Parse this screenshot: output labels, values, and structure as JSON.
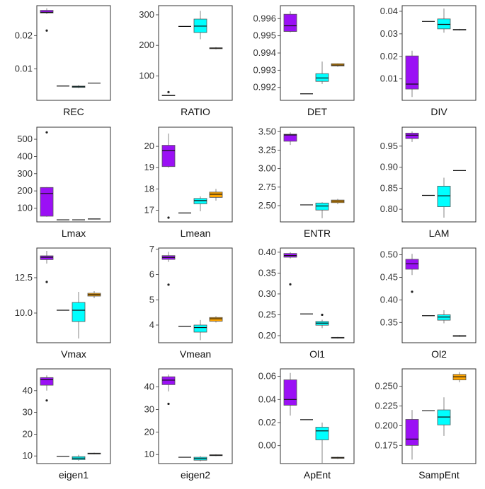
{
  "colors": {
    "group1": "#9B10F5",
    "group2": "#111111",
    "group3": "#00FFFF",
    "group4": "#FFA500"
  },
  "chart_data": [
    {
      "type": "box",
      "xlabel": "REC",
      "ylim": [
        0.0005,
        0.029
      ],
      "yticks": [
        0.01,
        0.02
      ],
      "ytick_labels": [
        "0.01",
        "0.02"
      ],
      "boxes": [
        {
          "min": 0.0265,
          "q1": 0.0268,
          "median": 0.027,
          "q3": 0.0276,
          "max": 0.0282,
          "outliers": [
            0.0215
          ]
        },
        {
          "min": 0.0048,
          "q1": 0.0048,
          "median": 0.0048,
          "q3": 0.0048,
          "max": 0.0048,
          "outliers": []
        },
        {
          "min": 0.0042,
          "q1": 0.0044,
          "median": 0.0046,
          "q3": 0.0048,
          "max": 0.0051,
          "outliers": []
        },
        {
          "min": 0.0056,
          "q1": 0.0057,
          "median": 0.0057,
          "q3": 0.0058,
          "max": 0.0058,
          "outliers": []
        }
      ]
    },
    {
      "type": "box",
      "xlabel": "RATIO",
      "ylim": [
        20,
        330
      ],
      "yticks": [
        100,
        200,
        300
      ],
      "ytick_labels": [
        "100",
        "200",
        "300"
      ],
      "boxes": [
        {
          "min": 35,
          "q1": 35,
          "median": 36,
          "q3": 37,
          "max": 37,
          "outliers": [
            47
          ]
        },
        {
          "min": 262,
          "q1": 262,
          "median": 262,
          "q3": 262,
          "max": 262,
          "outliers": []
        },
        {
          "min": 220,
          "q1": 242,
          "median": 263,
          "q3": 286,
          "max": 313,
          "outliers": []
        },
        {
          "min": 187,
          "q1": 189,
          "median": 191,
          "q3": 192,
          "max": 194,
          "outliers": []
        }
      ]
    },
    {
      "type": "box",
      "xlabel": "DET",
      "ylim": [
        0.99125,
        0.99675
      ],
      "yticks": [
        0.992,
        0.993,
        0.994,
        0.995,
        0.996
      ],
      "ytick_labels": [
        "0.992",
        "0.993",
        "0.994",
        "0.995",
        "0.996"
      ],
      "boxes": [
        {
          "min": 0.9952,
          "q1": 0.99525,
          "median": 0.99558,
          "q3": 0.99625,
          "max": 0.99642,
          "outliers": []
        },
        {
          "min": 0.99163,
          "q1": 0.99163,
          "median": 0.99163,
          "q3": 0.99163,
          "max": 0.99163,
          "outliers": []
        },
        {
          "min": 0.9922,
          "q1": 0.99235,
          "median": 0.99255,
          "q3": 0.9928,
          "max": 0.9935,
          "outliers": []
        },
        {
          "min": 0.9932,
          "q1": 0.99325,
          "median": 0.9933,
          "q3": 0.99338,
          "max": 0.9934,
          "outliers": []
        }
      ]
    },
    {
      "type": "box",
      "xlabel": "DIV",
      "ylim": [
        0.0005,
        0.0425
      ],
      "yticks": [
        0.01,
        0.02,
        0.03,
        0.04
      ],
      "ytick_labels": [
        "0.01",
        "0.02",
        "0.03",
        "0.04"
      ],
      "boxes": [
        {
          "min": 0.002,
          "q1": 0.0055,
          "median": 0.0077,
          "q3": 0.0202,
          "max": 0.0225,
          "outliers": []
        },
        {
          "min": 0.0355,
          "q1": 0.0355,
          "median": 0.0355,
          "q3": 0.0355,
          "max": 0.0355,
          "outliers": []
        },
        {
          "min": 0.0305,
          "q1": 0.0322,
          "median": 0.0342,
          "q3": 0.0366,
          "max": 0.0412,
          "outliers": []
        },
        {
          "min": 0.0315,
          "q1": 0.0317,
          "median": 0.0318,
          "q3": 0.032,
          "max": 0.0322,
          "outliers": []
        }
      ]
    },
    {
      "type": "box",
      "xlabel": "Lmax",
      "ylim": [
        20,
        570
      ],
      "yticks": [
        100,
        200,
        300,
        400,
        500
      ],
      "ytick_labels": [
        "100",
        "200",
        "300",
        "400",
        "500"
      ],
      "boxes": [
        {
          "min": 50,
          "q1": 53,
          "median": 185,
          "q3": 220,
          "max": 222,
          "outliers": [
            540
          ]
        },
        {
          "min": 32,
          "q1": 32,
          "median": 32,
          "q3": 32,
          "max": 32,
          "outliers": []
        },
        {
          "min": 31,
          "q1": 32,
          "median": 32,
          "q3": 33,
          "max": 33,
          "outliers": []
        },
        {
          "min": 36,
          "q1": 37,
          "median": 37,
          "q3": 38,
          "max": 38,
          "outliers": []
        }
      ]
    },
    {
      "type": "box",
      "xlabel": "Lmean",
      "ylim": [
        16.45,
        20.9
      ],
      "yticks": [
        17,
        18,
        19,
        20
      ],
      "ytick_labels": [
        "17",
        "18",
        "19",
        "20"
      ],
      "boxes": [
        {
          "min": 19.0,
          "q1": 19.05,
          "median": 19.8,
          "q3": 20.05,
          "max": 20.6,
          "outliers": [
            16.65
          ]
        },
        {
          "min": 16.87,
          "q1": 16.87,
          "median": 16.87,
          "q3": 16.87,
          "max": 16.87,
          "outliers": []
        },
        {
          "min": 16.95,
          "q1": 17.3,
          "median": 17.45,
          "q3": 17.55,
          "max": 17.65,
          "outliers": []
        },
        {
          "min": 17.45,
          "q1": 17.6,
          "median": 17.75,
          "q3": 17.85,
          "max": 18.0,
          "outliers": []
        }
      ]
    },
    {
      "type": "box",
      "xlabel": "ENTR",
      "ylim": [
        2.28,
        3.56
      ],
      "yticks": [
        2.5,
        2.75,
        3.0,
        3.25,
        3.5
      ],
      "ytick_labels": [
        "2.50",
        "2.75",
        "3.00",
        "3.25",
        "3.50"
      ],
      "boxes": [
        {
          "min": 3.32,
          "q1": 3.37,
          "median": 3.455,
          "q3": 3.465,
          "max": 3.49,
          "outliers": []
        },
        {
          "min": 2.51,
          "q1": 2.51,
          "median": 2.51,
          "q3": 2.51,
          "max": 2.51,
          "outliers": []
        },
        {
          "min": 2.33,
          "q1": 2.44,
          "median": 2.495,
          "q3": 2.535,
          "max": 2.545,
          "outliers": []
        },
        {
          "min": 2.52,
          "q1": 2.54,
          "median": 2.56,
          "q3": 2.575,
          "max": 2.59,
          "outliers": []
        }
      ]
    },
    {
      "type": "box",
      "xlabel": "LAM",
      "ylim": [
        0.77,
        0.995
      ],
      "yticks": [
        0.8,
        0.85,
        0.9,
        0.95
      ],
      "ytick_labels": [
        "0.80",
        "0.85",
        "0.90",
        "0.95"
      ],
      "boxes": [
        {
          "min": 0.96,
          "q1": 0.968,
          "median": 0.976,
          "q3": 0.981,
          "max": 0.985,
          "outliers": []
        },
        {
          "min": 0.833,
          "q1": 0.833,
          "median": 0.833,
          "q3": 0.833,
          "max": 0.833,
          "outliers": []
        },
        {
          "min": 0.78,
          "q1": 0.806,
          "median": 0.832,
          "q3": 0.855,
          "max": 0.875,
          "outliers": []
        },
        {
          "min": 0.892,
          "q1": 0.892,
          "median": 0.892,
          "q3": 0.892,
          "max": 0.892,
          "outliers": []
        }
      ]
    },
    {
      "type": "box",
      "xlabel": "Vmax",
      "ylim": [
        7.9,
        14.6
      ],
      "yticks": [
        10.0,
        12.5
      ],
      "ytick_labels": [
        "10.0",
        "12.5"
      ],
      "boxes": [
        {
          "min": 13.5,
          "q1": 13.78,
          "median": 13.95,
          "q3": 14.05,
          "max": 14.4,
          "outliers": [
            12.2
          ]
        },
        {
          "min": 10.2,
          "q1": 10.2,
          "median": 10.2,
          "q3": 10.2,
          "max": 10.2,
          "outliers": []
        },
        {
          "min": 8.2,
          "q1": 9.4,
          "median": 10.2,
          "q3": 10.75,
          "max": 11.5,
          "outliers": []
        },
        {
          "min": 11.05,
          "q1": 11.2,
          "median": 11.3,
          "q3": 11.4,
          "max": 11.55,
          "outliers": []
        }
      ]
    },
    {
      "type": "box",
      "xlabel": "Vmean",
      "ylim": [
        3.3,
        7.05
      ],
      "yticks": [
        4,
        5,
        6,
        7
      ],
      "ytick_labels": [
        "4",
        "5",
        "6",
        "7"
      ],
      "boxes": [
        {
          "min": 6.5,
          "q1": 6.6,
          "median": 6.68,
          "q3": 6.75,
          "max": 6.9,
          "outliers": [
            5.6
          ]
        },
        {
          "min": 3.95,
          "q1": 3.95,
          "median": 3.95,
          "q3": 3.95,
          "max": 3.95,
          "outliers": []
        },
        {
          "min": 3.4,
          "q1": 3.72,
          "median": 3.9,
          "q3": 4.0,
          "max": 4.2,
          "outliers": []
        },
        {
          "min": 4.1,
          "q1": 4.15,
          "median": 4.25,
          "q3": 4.3,
          "max": 4.35,
          "outliers": []
        }
      ]
    },
    {
      "type": "box",
      "xlabel": "Ol1",
      "ylim": [
        0.183,
        0.41
      ],
      "yticks": [
        0.2,
        0.25,
        0.3,
        0.35,
        0.4
      ],
      "ytick_labels": [
        "0.20",
        "0.25",
        "0.30",
        "0.35",
        "0.40"
      ],
      "boxes": [
        {
          "min": 0.385,
          "q1": 0.388,
          "median": 0.392,
          "q3": 0.397,
          "max": 0.4,
          "outliers": [
            0.323
          ]
        },
        {
          "min": 0.252,
          "q1": 0.252,
          "median": 0.252,
          "q3": 0.252,
          "max": 0.252,
          "outliers": []
        },
        {
          "min": 0.218,
          "q1": 0.225,
          "median": 0.23,
          "q3": 0.234,
          "max": 0.238,
          "outliers": [
            0.25
          ]
        },
        {
          "min": 0.193,
          "q1": 0.194,
          "median": 0.195,
          "q3": 0.196,
          "max": 0.197,
          "outliers": []
        }
      ]
    },
    {
      "type": "box",
      "xlabel": "Ol2",
      "ylim": [
        0.305,
        0.515
      ],
      "yticks": [
        0.35,
        0.4,
        0.45,
        0.5
      ],
      "ytick_labels": [
        "0.35",
        "0.40",
        "0.45",
        "0.50"
      ],
      "boxes": [
        {
          "min": 0.455,
          "q1": 0.468,
          "median": 0.48,
          "q3": 0.49,
          "max": 0.502,
          "outliers": [
            0.418
          ]
        },
        {
          "min": 0.365,
          "q1": 0.365,
          "median": 0.365,
          "q3": 0.365,
          "max": 0.365,
          "outliers": []
        },
        {
          "min": 0.348,
          "q1": 0.355,
          "median": 0.362,
          "q3": 0.367,
          "max": 0.377,
          "outliers": []
        },
        {
          "min": 0.318,
          "q1": 0.319,
          "median": 0.32,
          "q3": 0.321,
          "max": 0.322,
          "outliers": []
        }
      ]
    },
    {
      "type": "box",
      "xlabel": "eigen1",
      "ylim": [
        6.5,
        50
      ],
      "yticks": [
        10,
        20,
        30,
        40
      ],
      "ytick_labels": [
        "10",
        "20",
        "30",
        "40"
      ],
      "boxes": [
        {
          "min": 40,
          "q1": 42.5,
          "median": 45,
          "q3": 46,
          "max": 47,
          "outliers": [
            35.5
          ]
        },
        {
          "min": 9.8,
          "q1": 9.8,
          "median": 9.8,
          "q3": 9.8,
          "max": 9.8,
          "outliers": []
        },
        {
          "min": 7.8,
          "q1": 8.3,
          "median": 9.0,
          "q3": 9.7,
          "max": 10.5,
          "outliers": []
        },
        {
          "min": 10.7,
          "q1": 10.9,
          "median": 11.1,
          "q3": 11.3,
          "max": 11.5,
          "outliers": []
        }
      ]
    },
    {
      "type": "box",
      "xlabel": "eigen2",
      "ylim": [
        6,
        48
      ],
      "yticks": [
        10,
        20,
        30,
        40
      ],
      "ytick_labels": [
        "10",
        "20",
        "30",
        "40"
      ],
      "boxes": [
        {
          "min": 38,
          "q1": 41,
          "median": 43,
          "q3": 44.5,
          "max": 45.5,
          "outliers": [
            32.5
          ]
        },
        {
          "min": 8.8,
          "q1": 8.8,
          "median": 8.8,
          "q3": 8.8,
          "max": 8.8,
          "outliers": []
        },
        {
          "min": 7.0,
          "q1": 7.5,
          "median": 8.2,
          "q3": 8.8,
          "max": 9.3,
          "outliers": []
        },
        {
          "min": 9.3,
          "q1": 9.5,
          "median": 9.7,
          "q3": 9.9,
          "max": 10.1,
          "outliers": []
        }
      ]
    },
    {
      "type": "box",
      "xlabel": "ApEnt",
      "ylim": [
        -0.0155,
        0.0665
      ],
      "yticks": [
        0.0,
        0.02,
        0.04,
        0.06
      ],
      "ytick_labels": [
        "0.00",
        "0.02",
        "0.04",
        "0.06"
      ],
      "boxes": [
        {
          "min": 0.026,
          "q1": 0.035,
          "median": 0.04,
          "q3": 0.057,
          "max": 0.063,
          "outliers": []
        },
        {
          "min": 0.0225,
          "q1": 0.0225,
          "median": 0.0225,
          "q3": 0.0225,
          "max": 0.0225,
          "outliers": []
        },
        {
          "min": -0.015,
          "q1": 0.005,
          "median": 0.0128,
          "q3": 0.016,
          "max": 0.02,
          "outliers": []
        },
        {
          "min": -0.0115,
          "q1": -0.011,
          "median": -0.0105,
          "q3": -0.01,
          "max": -0.0095,
          "outliers": []
        }
      ]
    },
    {
      "type": "box",
      "xlabel": "SampEnt",
      "ylim": [
        0.152,
        0.272
      ],
      "yticks": [
        0.175,
        0.2,
        0.225,
        0.25
      ],
      "ytick_labels": [
        "0.175",
        "0.200",
        "0.225",
        "0.250"
      ],
      "boxes": [
        {
          "min": 0.157,
          "q1": 0.175,
          "median": 0.183,
          "q3": 0.208,
          "max": 0.22,
          "outliers": []
        },
        {
          "min": 0.219,
          "q1": 0.219,
          "median": 0.219,
          "q3": 0.219,
          "max": 0.219,
          "outliers": []
        },
        {
          "min": 0.187,
          "q1": 0.201,
          "median": 0.211,
          "q3": 0.22,
          "max": 0.236,
          "outliers": []
        },
        {
          "min": 0.255,
          "q1": 0.258,
          "median": 0.262,
          "q3": 0.265,
          "max": 0.268,
          "outliers": []
        }
      ]
    }
  ]
}
